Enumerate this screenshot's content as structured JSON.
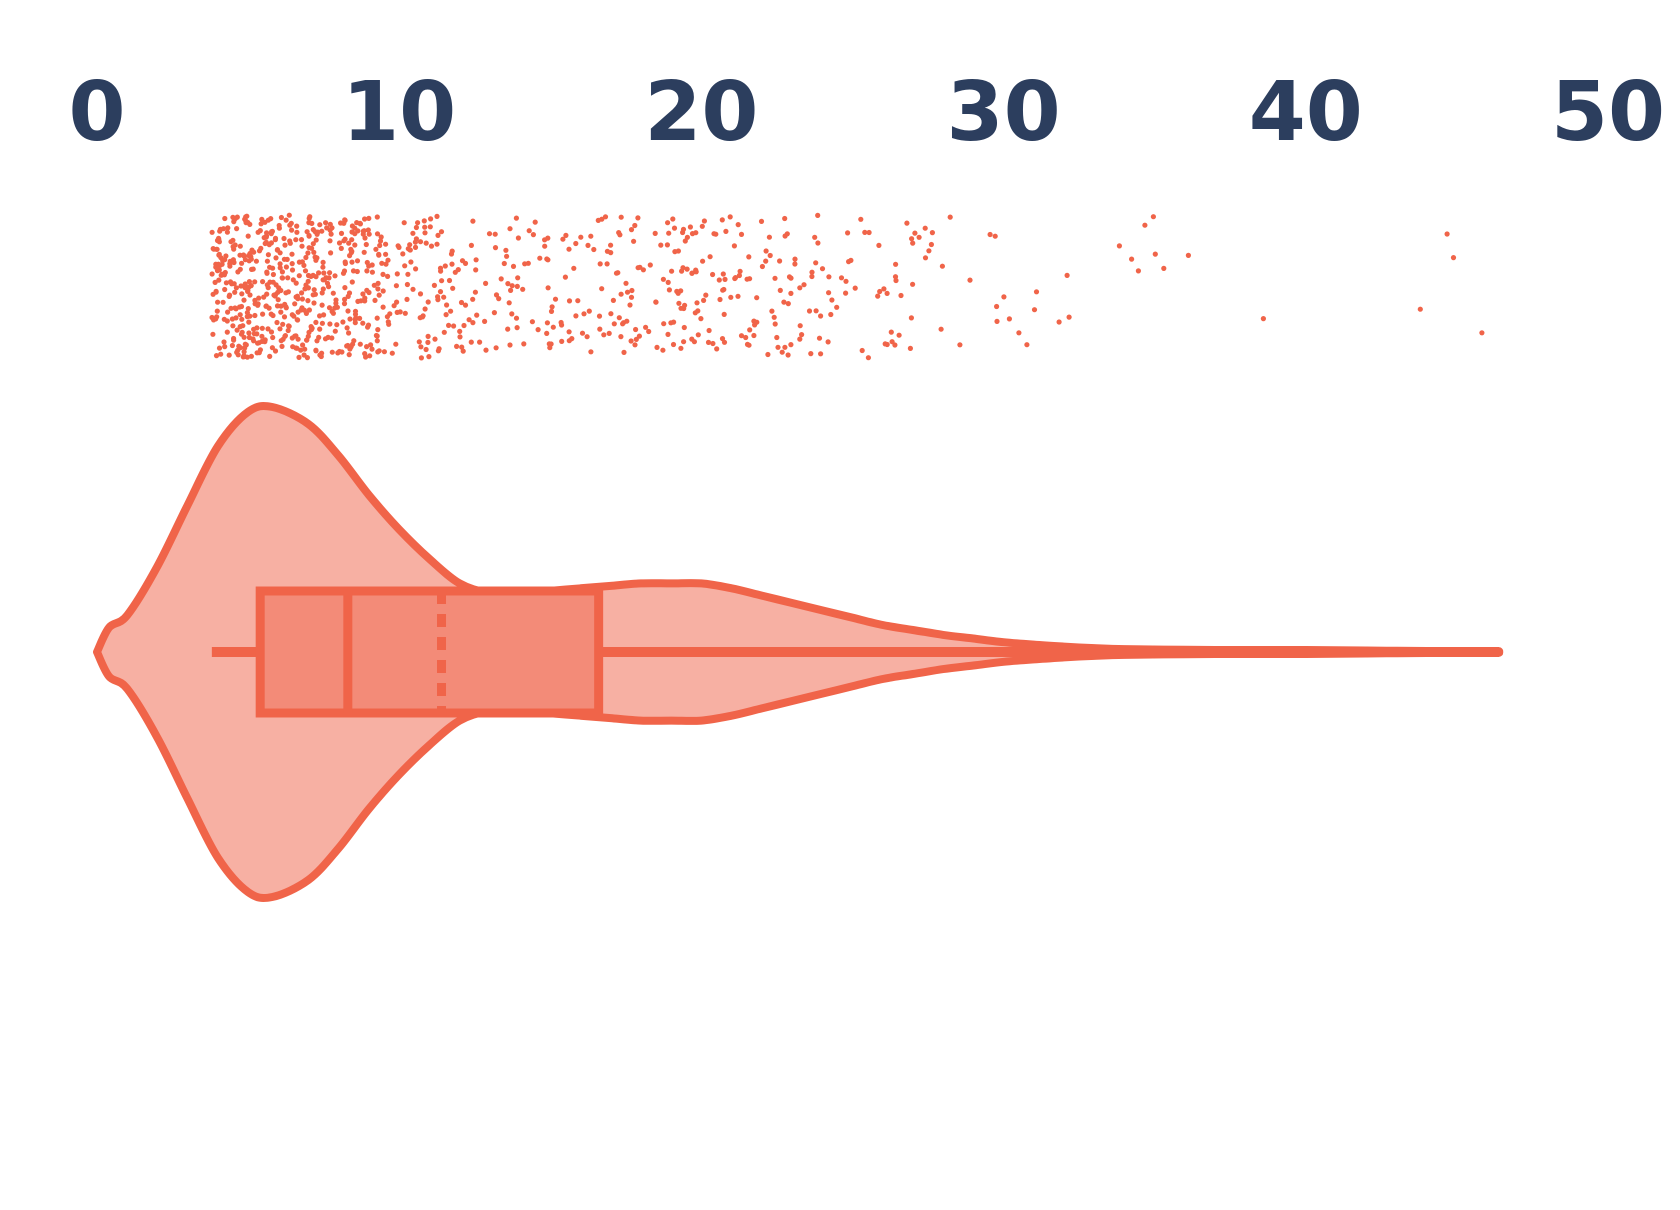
{
  "chart_data": {
    "type": "violin",
    "orientation": "horizontal",
    "xlim": [
      0,
      50
    ],
    "x_ticks": [
      0,
      10,
      20,
      30,
      40,
      50
    ],
    "x_tick_labels": [
      "0",
      "10",
      "20",
      "30",
      "40",
      "50"
    ],
    "axis_position": "top",
    "grid": false,
    "box": {
      "whisker_low": 3.8,
      "q1": 5.4,
      "median": 8.3,
      "mean": 11.4,
      "q3": 16.6,
      "whisker_high": 46.4
    },
    "density": [
      [
        0.0,
        0.0
      ],
      [
        0.4,
        0.1
      ],
      [
        1.0,
        0.15
      ],
      [
        2.0,
        0.35
      ],
      [
        3.0,
        0.6
      ],
      [
        4.0,
        0.84
      ],
      [
        5.0,
        0.98
      ],
      [
        5.8,
        1.0
      ],
      [
        7.0,
        0.93
      ],
      [
        8.0,
        0.8
      ],
      [
        9.0,
        0.64
      ],
      [
        10.0,
        0.5
      ],
      [
        11.0,
        0.38
      ],
      [
        12.0,
        0.28
      ],
      [
        13.0,
        0.24
      ],
      [
        14.0,
        0.24
      ],
      [
        15.0,
        0.25
      ],
      [
        16.0,
        0.26
      ],
      [
        17.0,
        0.27
      ],
      [
        18.0,
        0.28
      ],
      [
        19.0,
        0.28
      ],
      [
        20.0,
        0.28
      ],
      [
        21.0,
        0.26
      ],
      [
        22.0,
        0.23
      ],
      [
        23.0,
        0.2
      ],
      [
        24.0,
        0.17
      ],
      [
        25.0,
        0.14
      ],
      [
        26.0,
        0.11
      ],
      [
        27.0,
        0.09
      ],
      [
        28.0,
        0.07
      ],
      [
        29.0,
        0.055
      ],
      [
        30.0,
        0.04
      ],
      [
        31.0,
        0.03
      ],
      [
        32.0,
        0.022
      ],
      [
        33.0,
        0.016
      ],
      [
        34.0,
        0.012
      ],
      [
        36.0,
        0.009
      ],
      [
        38.0,
        0.008
      ],
      [
        40.0,
        0.008
      ],
      [
        42.0,
        0.006
      ],
      [
        44.0,
        0.004
      ],
      [
        46.4,
        0.003
      ]
    ],
    "point_count": 1000,
    "colors": {
      "stroke": "#f06449",
      "violin_fill": "#f7b0a3",
      "box_fill": "#f38b78",
      "points": "#f06449",
      "tick_labels": "#2c3e5e"
    }
  }
}
